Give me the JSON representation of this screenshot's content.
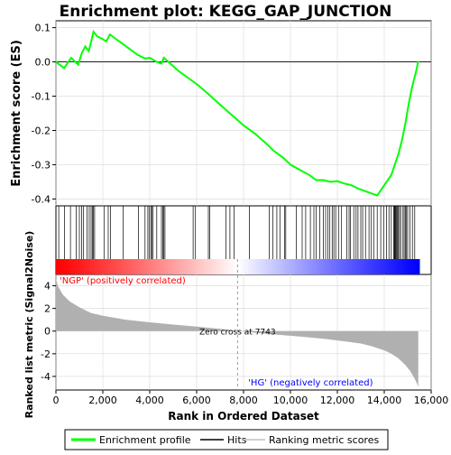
{
  "chart_data": {
    "type": "line",
    "title": "Enrichment plot: KEGG_GAP_JUNCTION",
    "xlabel": "Rank in Ordered Dataset",
    "xlim": [
      0,
      16000
    ],
    "n_genes": 15500,
    "x_ticks": [
      0,
      2000,
      4000,
      6000,
      8000,
      10000,
      12000,
      14000,
      16000
    ],
    "x_tick_labels": [
      "0",
      "2,000",
      "4,000",
      "6,000",
      "8,000",
      "10,000",
      "12,000",
      "14,000",
      "16,000"
    ],
    "es_panel": {
      "ylabel": "Enrichment score (ES)",
      "ylim": [
        -0.42,
        0.12
      ],
      "y_ticks": [
        0.1,
        0.0,
        -0.1,
        -0.2,
        -0.3,
        -0.4
      ],
      "y_tick_labels": [
        "0.1",
        "0.0",
        "-0.1",
        "-0.2",
        "-0.3",
        "-0.4"
      ],
      "grid": true,
      "series_color": "#00ff00",
      "series": [
        {
          "x": [
            0,
            350,
            650,
            950,
            1100,
            1250,
            1400,
            1500,
            1600,
            1750,
            1950,
            2150,
            2300,
            2500,
            2800,
            3100,
            3500,
            3800,
            4000,
            4300,
            4500,
            4600,
            4800,
            5200,
            5700,
            6100,
            6600,
            7000,
            7500,
            8000,
            8500,
            9000,
            9300,
            9700,
            10000,
            10400,
            10800,
            11100,
            11400,
            11700,
            12000,
            12300,
            12600,
            12900,
            13100,
            13300,
            13500,
            13700,
            13900,
            14100,
            14300,
            14450,
            14600,
            14750,
            14900,
            15050,
            15200,
            15350,
            15450
          ],
          "y": [
            0.0,
            -0.018,
            0.012,
            -0.008,
            0.025,
            0.045,
            0.032,
            0.058,
            0.088,
            0.075,
            0.068,
            0.06,
            0.08,
            0.07,
            0.055,
            0.04,
            0.02,
            0.01,
            0.012,
            0.0,
            -0.005,
            0.012,
            0.0,
            -0.025,
            -0.05,
            -0.07,
            -0.1,
            -0.125,
            -0.155,
            -0.185,
            -0.21,
            -0.24,
            -0.26,
            -0.28,
            -0.3,
            -0.315,
            -0.33,
            -0.345,
            -0.345,
            -0.35,
            -0.348,
            -0.355,
            -0.36,
            -0.37,
            -0.375,
            -0.38,
            -0.385,
            -0.39,
            -0.37,
            -0.35,
            -0.33,
            -0.3,
            -0.27,
            -0.23,
            -0.18,
            -0.12,
            -0.07,
            -0.03,
            0.002
          ]
        }
      ]
    },
    "hits_panel": {
      "hit_positions": [
        120,
        370,
        620,
        870,
        1000,
        1100,
        1180,
        1330,
        1420,
        1500,
        1560,
        1600,
        1650,
        2050,
        2230,
        2330,
        2860,
        3520,
        3800,
        3920,
        3980,
        4050,
        4080,
        4130,
        4300,
        4500,
        4560,
        4600,
        4650,
        5850,
        5950,
        6500,
        6560,
        7250,
        7420,
        7600,
        8250,
        9100,
        9250,
        9420,
        9550,
        9750,
        9800,
        10250,
        10500,
        10650,
        10850,
        11000,
        11100,
        11250,
        11400,
        11500,
        11600,
        11680,
        11780,
        11850,
        11930,
        12050,
        12180,
        12400,
        12500,
        12560,
        12700,
        12800,
        12880,
        13000,
        13080,
        13200,
        13350,
        13450,
        13550,
        13700,
        13850,
        13980,
        14100,
        14200,
        14300,
        14400,
        14430,
        14460,
        14490,
        14520,
        14560,
        14600,
        14650,
        14700,
        14800,
        14850,
        14900,
        14950,
        15000,
        15100,
        15200,
        15300
      ]
    },
    "ranked_panel": {
      "ylabel": "Ranked list metric (Signal2Noise)",
      "ylim": [
        -5.2,
        5.0
      ],
      "y_ticks": [
        4,
        2,
        0,
        -2,
        -4
      ],
      "y_tick_labels": [
        "4",
        "2",
        "0",
        "-2",
        "-4"
      ],
      "grid": true,
      "zero_cross": 7743,
      "zero_cross_label": "Zero cross at 7743",
      "positive_label": "'NGP' (positively correlated)",
      "negative_label": "'HG' (negatively correlated)",
      "positive_color": "#ff0000",
      "negative_color": "#0000ff",
      "fill_color": "#b0b0b0",
      "profile": {
        "x": [
          0,
          100,
          300,
          600,
          1000,
          1500,
          2000,
          3000,
          4000,
          5000,
          6000,
          7000,
          7743,
          8500,
          9500,
          10500,
          11500,
          12500,
          13000,
          13500,
          14000,
          14300,
          14600,
          14900,
          15100,
          15300,
          15450
        ],
        "y": [
          4.6,
          3.9,
          3.2,
          2.6,
          2.1,
          1.6,
          1.35,
          1.0,
          0.78,
          0.58,
          0.4,
          0.2,
          0.0,
          -0.15,
          -0.33,
          -0.5,
          -0.7,
          -0.95,
          -1.1,
          -1.35,
          -1.7,
          -2.0,
          -2.4,
          -3.0,
          -3.5,
          -4.2,
          -4.9
        ]
      }
    },
    "legend": {
      "placement": "bottom",
      "entries": [
        {
          "label": "Enrichment profile",
          "color": "#00ff00"
        },
        {
          "label": "Hits",
          "color": "#000000"
        },
        {
          "label": "Ranking metric scores",
          "color": "#c0c0c0"
        }
      ]
    }
  }
}
